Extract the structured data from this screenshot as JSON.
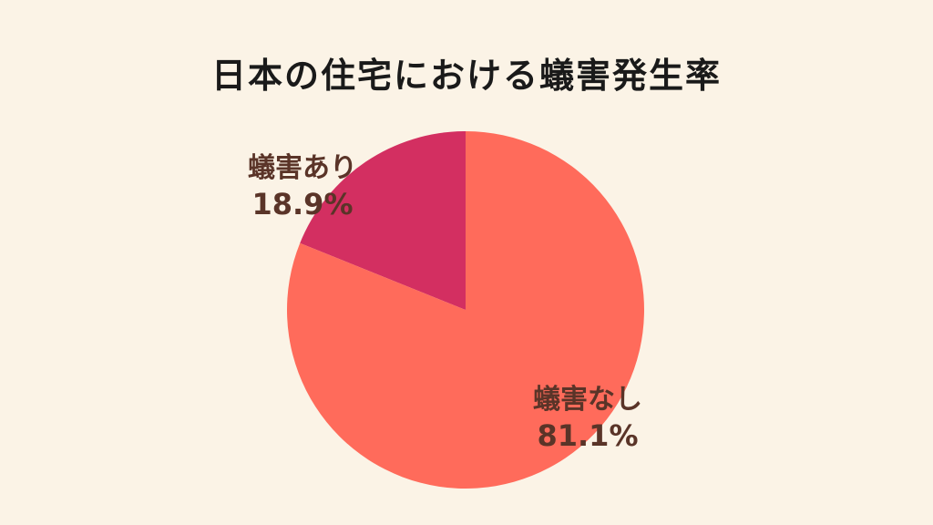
{
  "chart_data": {
    "type": "pie",
    "title": "日本の住宅における蟻害発生率",
    "slices": [
      {
        "label": "蟻害あり",
        "value": 18.9,
        "value_label": "18.9%",
        "color": "#D32F61"
      },
      {
        "label": "蟻害なし",
        "value": 81.1,
        "value_label": "81.1%",
        "color": "#FF6B5B"
      }
    ],
    "start": "12 o'clock",
    "direction": "counterclockwise",
    "legend": "none",
    "background": "#FBF3E6"
  }
}
